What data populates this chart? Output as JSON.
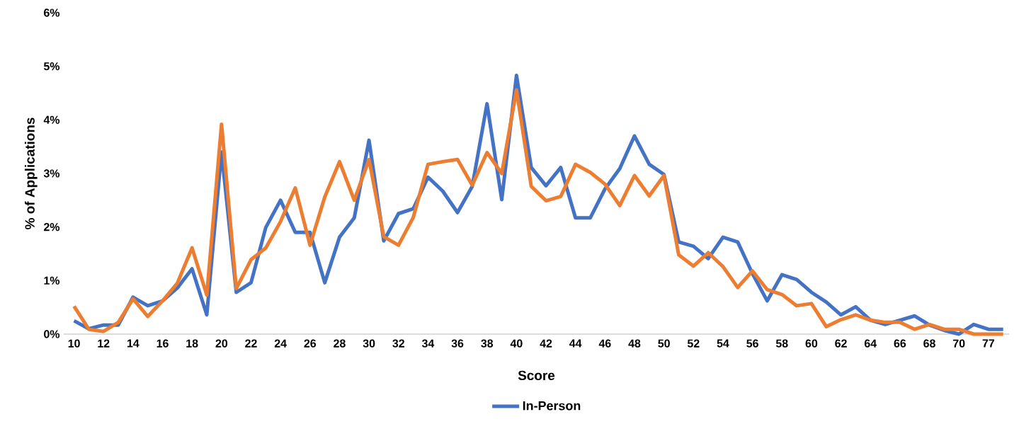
{
  "chart_data": {
    "type": "line",
    "xlabel": "Score",
    "ylabel": "% of Applications",
    "categories": [
      "10",
      null,
      "12",
      null,
      "14",
      null,
      "16",
      null,
      "18",
      null,
      "20",
      null,
      "22",
      null,
      "24",
      null,
      "26",
      null,
      "28",
      null,
      "30",
      null,
      "32",
      null,
      "34",
      null,
      "36",
      null,
      "38",
      null,
      "40",
      null,
      "42",
      null,
      "44",
      null,
      "46",
      null,
      "48",
      null,
      "50",
      null,
      "52",
      null,
      "54",
      null,
      "56",
      null,
      "58",
      null,
      "60",
      null,
      "62",
      null,
      "64",
      null,
      "66",
      null,
      "68",
      null,
      "70",
      null,
      "77",
      null
    ],
    "series": [
      {
        "name": "In-Person",
        "color": "#4472c4",
        "values": [
          0.25,
          0.1,
          0.17,
          0.17,
          0.69,
          0.53,
          0.62,
          0.86,
          1.22,
          0.36,
          3.4,
          0.78,
          0.96,
          1.99,
          2.5,
          1.9,
          1.9,
          0.96,
          1.81,
          2.17,
          3.62,
          1.74,
          2.25,
          2.34,
          2.93,
          2.67,
          2.27,
          2.76,
          4.3,
          2.51,
          4.83,
          3.11,
          2.77,
          3.11,
          2.17,
          2.17,
          2.71,
          3.09,
          3.7,
          3.17,
          2.98,
          1.72,
          1.64,
          1.41,
          1.81,
          1.72,
          1.13,
          0.62,
          1.11,
          1.02,
          0.78,
          0.6,
          0.36,
          0.51,
          0.26,
          0.18,
          0.26,
          0.34,
          0.17,
          0.07,
          0,
          0.18,
          0.09,
          0.09
        ]
      },
      {
        "color": "#ed7d31",
        "values": [
          0.52,
          0.09,
          0.05,
          0.22,
          0.66,
          0.33,
          0.62,
          0.95,
          1.61,
          0.73,
          3.92,
          0.85,
          1.39,
          1.61,
          2.1,
          2.73,
          1.66,
          2.56,
          3.22,
          2.5,
          3.26,
          1.82,
          1.66,
          2.18,
          3.17,
          3.22,
          3.26,
          2.78,
          3.39,
          3.0,
          4.56,
          2.76,
          2.49,
          2.57,
          3.17,
          3.02,
          2.8,
          2.4,
          2.96,
          2.58,
          2.96,
          1.48,
          1.27,
          1.52,
          1.26,
          0.87,
          1.18,
          0.83,
          0.74,
          0.53,
          0.57,
          0.14,
          0.27,
          0.36,
          0.26,
          0.22,
          0.22,
          0.09,
          0.18,
          0.09,
          0.09,
          0,
          0,
          0
        ]
      }
    ],
    "ylim": [
      0,
      6
    ],
    "yticks": [
      {
        "value": 0,
        "label": "0%"
      },
      {
        "value": 1,
        "label": "1%"
      },
      {
        "value": 2,
        "label": "2%"
      },
      {
        "value": 3,
        "label": "3%"
      },
      {
        "value": 4,
        "label": "4%"
      },
      {
        "value": 5,
        "label": "5%"
      },
      {
        "value": 6,
        "label": "6%"
      }
    ],
    "grid": false,
    "legend": "bottom"
  }
}
